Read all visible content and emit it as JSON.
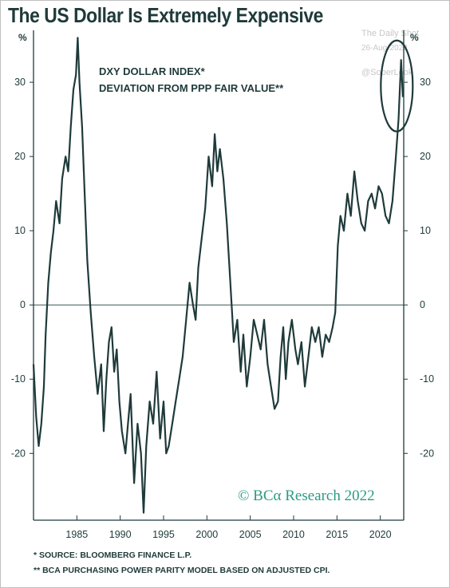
{
  "header": {
    "title": "The US Dollar Is Extremely Expensive",
    "watermark_1": "The Daily Shot",
    "watermark_2": "26-Aug-2022",
    "watermark_3": "@SoberLook"
  },
  "chart_data": {
    "type": "line",
    "title": "The US Dollar Is Extremely Expensive",
    "annotation_lines": [
      "DXY DOLLAR INDEX*",
      "DEVIATION FROM PPP FAIR VALUE**"
    ],
    "y_unit_left": "%",
    "y_unit_right": "%",
    "ylim": [
      -29,
      37
    ],
    "xlim": [
      1980.0,
      2022.7
    ],
    "y_ticks": [
      "30",
      "20",
      "10",
      "0",
      "-10",
      "-20"
    ],
    "y_tick_values": [
      30,
      20,
      10,
      0,
      -10,
      -20
    ],
    "x_ticks": [
      "1985",
      "1990",
      "1995",
      "2000",
      "2005",
      "2010",
      "2015",
      "2020"
    ],
    "x_tick_values": [
      1985,
      1990,
      1995,
      2000,
      2005,
      2010,
      2015,
      2020
    ],
    "grid": false,
    "zero_line": true,
    "highlight": "ellipse around 2021-2022 peak",
    "series": [
      {
        "color": "#1f3a3a",
        "x": [
          1980.0,
          1980.3,
          1980.6,
          1980.9,
          1981.2,
          1981.4,
          1981.7,
          1982.0,
          1982.3,
          1982.6,
          1983.0,
          1983.3,
          1983.7,
          1984.0,
          1984.3,
          1984.6,
          1984.9,
          1985.1,
          1985.3,
          1985.6,
          1985.9,
          1986.2,
          1986.6,
          1987.0,
          1987.4,
          1987.8,
          1988.1,
          1988.4,
          1988.7,
          1989.0,
          1989.3,
          1989.6,
          1989.9,
          1990.2,
          1990.6,
          1990.9,
          1991.2,
          1991.6,
          1992.0,
          1992.4,
          1992.7,
          1993.0,
          1993.4,
          1993.8,
          1994.2,
          1994.6,
          1995.0,
          1995.3,
          1995.6,
          1996.0,
          1996.4,
          1996.8,
          1997.2,
          1997.6,
          1998.0,
          1998.4,
          1998.7,
          1999.0,
          1999.4,
          1999.8,
          2000.2,
          2000.6,
          2000.9,
          2001.2,
          2001.5,
          2001.9,
          2002.3,
          2002.7,
          2003.1,
          2003.5,
          2003.9,
          2004.2,
          2004.6,
          2005.0,
          2005.4,
          2005.8,
          2006.2,
          2006.6,
          2007.0,
          2007.4,
          2007.8,
          2008.2,
          2008.5,
          2008.8,
          2009.1,
          2009.4,
          2009.8,
          2010.2,
          2010.5,
          2010.9,
          2011.3,
          2011.7,
          2012.1,
          2012.5,
          2012.9,
          2013.3,
          2013.7,
          2014.1,
          2014.5,
          2014.8,
          2015.1,
          2015.4,
          2015.8,
          2016.2,
          2016.6,
          2017.0,
          2017.4,
          2017.8,
          2018.2,
          2018.6,
          2019.0,
          2019.4,
          2019.8,
          2020.2,
          2020.6,
          2021.0,
          2021.4,
          2021.8,
          2022.1,
          2022.4,
          2022.6
        ],
        "y": [
          -8,
          -15,
          -19,
          -16,
          -11,
          -4,
          3,
          7,
          10,
          14,
          11,
          17,
          20,
          18,
          24,
          29,
          31,
          36,
          30,
          24,
          15,
          6,
          -1,
          -7,
          -12,
          -8,
          -17,
          -10,
          -5,
          -3,
          -9,
          -6,
          -13,
          -17,
          -20,
          -16,
          -12,
          -24,
          -16,
          -20,
          -28,
          -19,
          -13,
          -16,
          -9,
          -18,
          -13,
          -20,
          -19,
          -16,
          -13,
          -10,
          -7,
          -2,
          3,
          0,
          -2,
          5,
          9,
          13,
          20,
          16,
          23,
          18,
          21,
          17,
          11,
          3,
          -5,
          -2,
          -9,
          -4,
          -11,
          -7,
          -2,
          -4,
          -6,
          -2,
          -8,
          -11,
          -14,
          -13,
          -7,
          -3,
          -10,
          -5,
          -2,
          -6,
          -8,
          -5,
          -11,
          -7,
          -3,
          -5,
          -3,
          -7,
          -4,
          -5,
          -3,
          -1,
          8,
          12,
          10,
          15,
          12,
          18,
          14,
          11,
          10,
          14,
          15,
          13,
          16,
          15,
          12,
          11,
          14,
          20,
          25,
          33,
          28
        ]
      }
    ],
    "watermark": "© BCα Research 2022"
  },
  "footnotes": {
    "source": "* SOURCE: BLOOMBERG FINANCE L.P.",
    "model": "** BCA PURCHASING POWER PARITY MODEL BASED ON ADJUSTED CPI."
  }
}
